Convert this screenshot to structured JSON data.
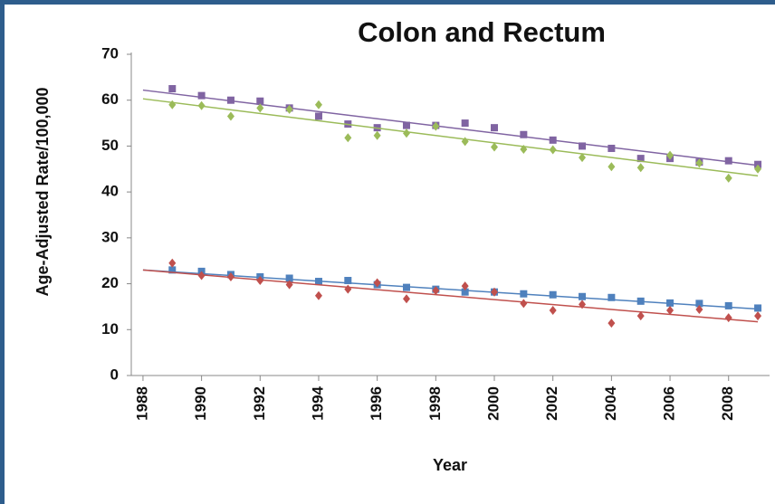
{
  "chart_data": {
    "type": "scatter",
    "title": "Colon and Rectum",
    "x_label": "Year",
    "y_label": "Age-Adjusted Rate/100,000",
    "x": [
      1989,
      1990,
      1991,
      1992,
      1993,
      1994,
      1995,
      1996,
      1997,
      1998,
      1999,
      2000,
      2001,
      2002,
      2003,
      2004,
      2005,
      2006,
      2007,
      2008,
      2009
    ],
    "xlim": [
      1987.6,
      2009.4
    ],
    "xticks": [
      1988,
      1990,
      1992,
      1994,
      1996,
      1998,
      2000,
      2002,
      2004,
      2006,
      2008
    ],
    "ylim": [
      0,
      70
    ],
    "yticks": [
      0,
      10,
      20,
      30,
      40,
      50,
      60,
      70
    ],
    "trend_x": [
      1988,
      2009
    ],
    "series": [
      {
        "color": "#8064a2",
        "marker": "square",
        "values": [
          62.5,
          61,
          60,
          59.8,
          58.3,
          56.5,
          54.8,
          54,
          54.5,
          54.5,
          55,
          54,
          52.5,
          51.3,
          50,
          49.5,
          47.3,
          47.3,
          46.5,
          46.8,
          46
        ],
        "trend": [
          62.2,
          45.8
        ]
      },
      {
        "color": "#9bbb59",
        "marker": "diamond",
        "values": [
          59,
          58.8,
          56.5,
          58.3,
          58,
          59,
          51.8,
          52.3,
          52.8,
          54.3,
          51,
          49.8,
          49.3,
          49.2,
          47.5,
          45.5,
          45.3,
          48,
          46.3,
          43,
          45
        ],
        "trend": [
          60.3,
          43.5
        ]
      },
      {
        "color": "#4f81bd",
        "marker": "square",
        "values": [
          23,
          22.7,
          22,
          21.5,
          21.2,
          20.5,
          20.7,
          19.8,
          19.2,
          18.8,
          18.2,
          18.2,
          17.8,
          17.6,
          17.2,
          17,
          16.2,
          15.8,
          15.7,
          15.2,
          14.7
        ],
        "trend": [
          23,
          14.5
        ]
      },
      {
        "color": "#c0504d",
        "marker": "diamond",
        "values": [
          24.5,
          21.8,
          21.5,
          20.7,
          19.8,
          17.4,
          18.8,
          20.2,
          16.7,
          18.5,
          19.5,
          18.2,
          15.7,
          14.2,
          15.5,
          11.4,
          13,
          14.2,
          14.4,
          12.6,
          13
        ],
        "trend": [
          23,
          11.7
        ]
      }
    ]
  }
}
